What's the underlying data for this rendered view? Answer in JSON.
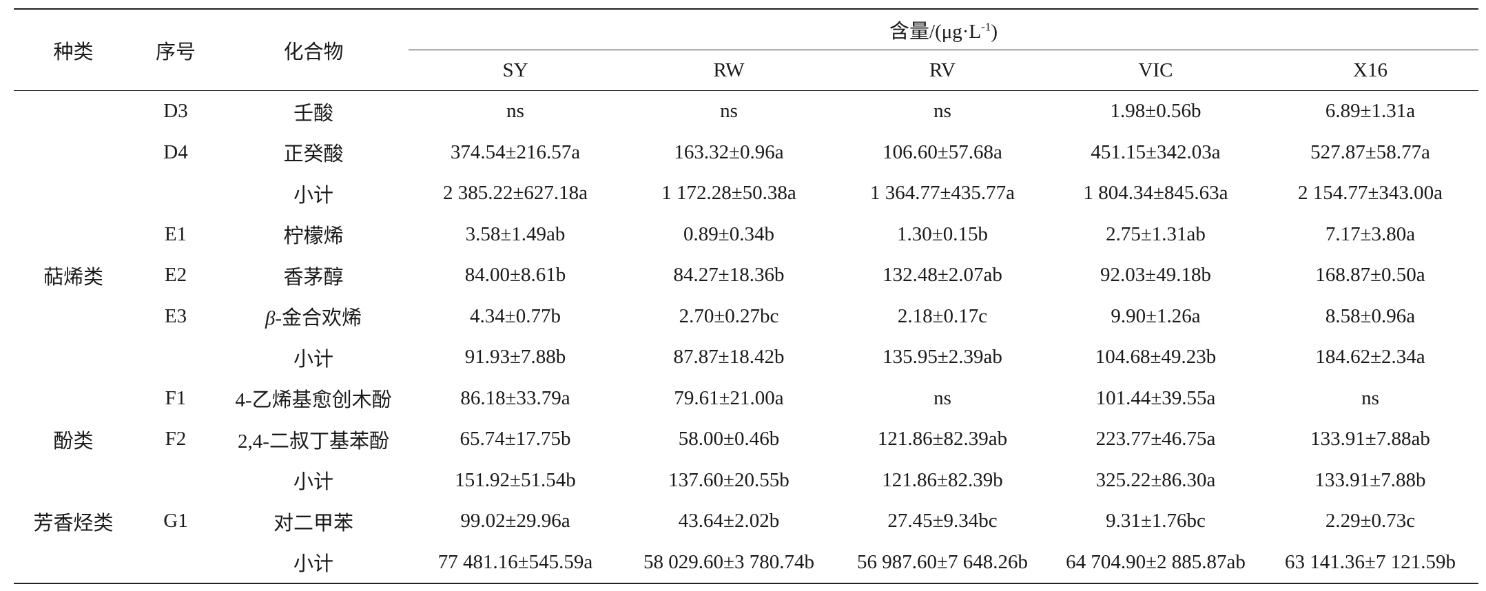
{
  "header": {
    "type_label": "种类",
    "id_label": "序号",
    "compound_label": "化合物",
    "content_label_prefix": "含量/(μg·L",
    "content_label_sup": "-1",
    "content_label_suffix": ")",
    "samples": [
      "SY",
      "RW",
      "RV",
      "VIC",
      "X16"
    ]
  },
  "rows": [
    {
      "type": "",
      "id": "D3",
      "compound": "壬酸",
      "values": [
        "ns",
        "ns",
        "ns",
        "1.98±0.56b",
        "6.89±1.31a"
      ]
    },
    {
      "type": "",
      "id": "D4",
      "compound": "正癸酸",
      "values": [
        "374.54±216.57a",
        "163.32±0.96a",
        "106.60±57.68a",
        "451.15±342.03a",
        "527.87±58.77a"
      ]
    },
    {
      "type": "",
      "id": "",
      "compound": "小计",
      "values": [
        "2 385.22±627.18a",
        "1 172.28±50.38a",
        "1 364.77±435.77a",
        "1 804.34±845.63a",
        "2 154.77±343.00a"
      ]
    },
    {
      "type": "",
      "id": "E1",
      "compound": "柠檬烯",
      "values": [
        "3.58±1.49ab",
        "0.89±0.34b",
        "1.30±0.15b",
        "2.75±1.31ab",
        "7.17±3.80a"
      ]
    },
    {
      "type": "萜烯类",
      "id": "E2",
      "compound": "香茅醇",
      "values": [
        "84.00±8.61b",
        "84.27±18.36b",
        "132.48±2.07ab",
        "92.03±49.18b",
        "168.87±0.50a"
      ]
    },
    {
      "type": "",
      "id": "E3",
      "compound_prefix": "β",
      "compound": "-金合欢烯",
      "values": [
        "4.34±0.77b",
        "2.70±0.27bc",
        "2.18±0.17c",
        "9.90±1.26a",
        "8.58±0.96a"
      ]
    },
    {
      "type": "",
      "id": "",
      "compound": "小计",
      "values": [
        "91.93±7.88b",
        "87.87±18.42b",
        "135.95±2.39ab",
        "104.68±49.23b",
        "184.62±2.34a"
      ]
    },
    {
      "type": "",
      "id": "F1",
      "compound": "4-乙烯基愈创木酚",
      "values": [
        "86.18±33.79a",
        "79.61±21.00a",
        "ns",
        "101.44±39.55a",
        "ns"
      ]
    },
    {
      "type": "酚类",
      "id": "F2",
      "compound": "2,4-二叔丁基苯酚",
      "values": [
        "65.74±17.75b",
        "58.00±0.46b",
        "121.86±82.39ab",
        "223.77±46.75a",
        "133.91±7.88ab"
      ]
    },
    {
      "type": "",
      "id": "",
      "compound": "小计",
      "values": [
        "151.92±51.54b",
        "137.60±20.55b",
        "121.86±82.39b",
        "325.22±86.30a",
        "133.91±7.88b"
      ]
    },
    {
      "type": "芳香烃类",
      "id": "G1",
      "compound": "对二甲苯",
      "values": [
        "99.02±29.96a",
        "43.64±2.02b",
        "27.45±9.34bc",
        "9.31±1.76bc",
        "2.29±0.73c"
      ]
    },
    {
      "type": "",
      "id": "",
      "compound": "小计",
      "values": [
        "77 481.16±545.59a",
        "58 029.60±3 780.74b",
        "56 987.60±7 648.26b",
        "64 704.90±2 885.87ab",
        "63 141.36±7 121.59b"
      ]
    }
  ]
}
